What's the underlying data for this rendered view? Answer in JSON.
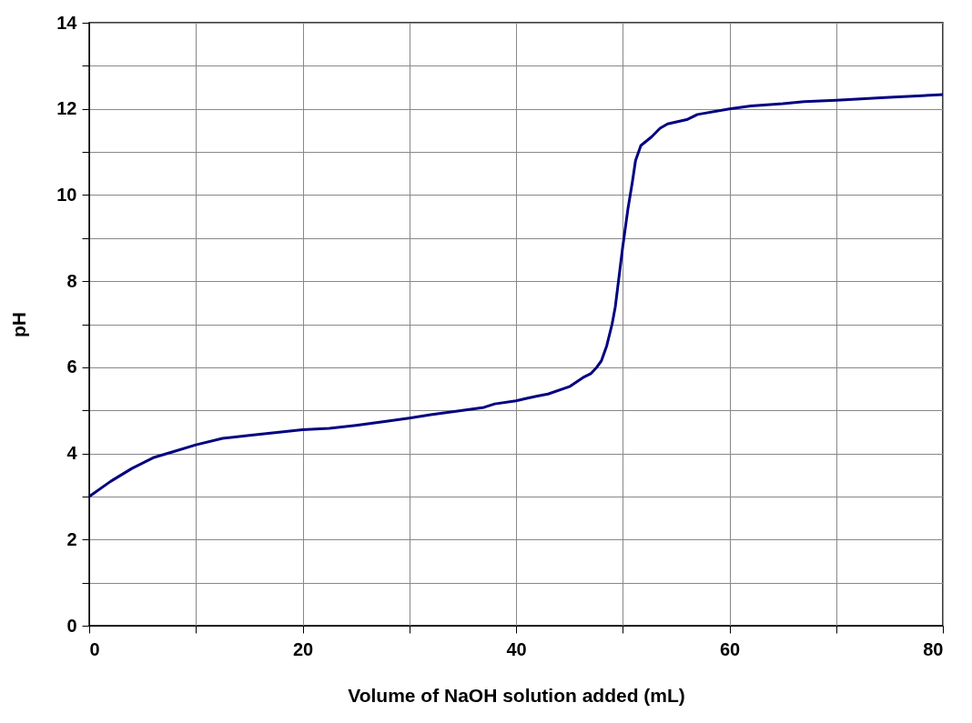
{
  "chart_data": {
    "type": "line",
    "xlabel": "Volume of NaOH solution added (mL)",
    "ylabel": "pH",
    "x": [
      0,
      2,
      4,
      6,
      8,
      10,
      12.5,
      15,
      20,
      22.5,
      25,
      28,
      30,
      32,
      35,
      37,
      38,
      40,
      41,
      42,
      43,
      45,
      46.4,
      47,
      47.5,
      48,
      48.5,
      49,
      49.3,
      49.5,
      50,
      50.5,
      50.9,
      51.2,
      51.7,
      52.7,
      53.5,
      54.2,
      56,
      57,
      60,
      62,
      65,
      67,
      70,
      75,
      80
    ],
    "series": [
      {
        "color": "#000080",
        "values": [
          3.0,
          3.35,
          3.65,
          3.9,
          4.05,
          4.2,
          4.35,
          4.42,
          4.55,
          4.58,
          4.65,
          4.75,
          4.82,
          4.9,
          5.0,
          5.07,
          5.15,
          5.22,
          5.28,
          5.33,
          5.38,
          5.55,
          5.78,
          5.85,
          5.98,
          6.15,
          6.5,
          7.0,
          7.4,
          7.8,
          8.8,
          9.7,
          10.3,
          10.8,
          11.15,
          11.35,
          11.55,
          11.65,
          11.75,
          11.87,
          12.0,
          12.07,
          12.12,
          12.17,
          12.2,
          12.27,
          12.33
        ]
      }
    ],
    "xlim": [
      0,
      80
    ],
    "xticks": [
      0,
      {
        "value": 10,
        "label": null
      },
      20,
      {
        "value": 30,
        "label": null
      },
      40,
      {
        "value": 50,
        "label": null
      },
      60,
      {
        "value": 70,
        "label": null
      },
      80
    ],
    "ylim": [
      0,
      14
    ],
    "yticks": [
      0,
      {
        "value": 1,
        "label": null
      },
      2,
      {
        "value": 3,
        "label": null
      },
      4,
      {
        "value": 5,
        "label": null
      },
      6,
      {
        "value": 7,
        "label": null
      },
      8,
      {
        "value": 9,
        "label": null
      },
      10,
      {
        "value": 11,
        "label": null
      },
      12,
      {
        "value": 13,
        "label": null
      },
      14
    ],
    "grid": true,
    "marker": "none",
    "line_style": "solid"
  }
}
